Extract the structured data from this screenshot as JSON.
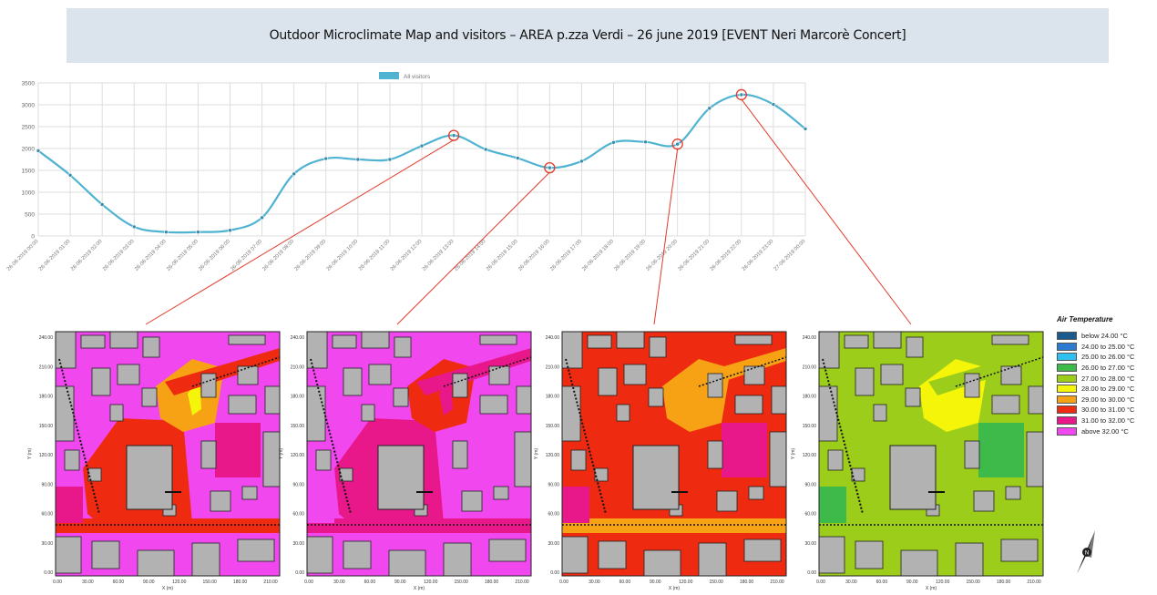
{
  "title": "Outdoor Microclimate Map and visitors – AREA p.zza Verdi – 26 june 2019 [EVENT Neri Marcorè Concert]",
  "chart_data": {
    "type": "line",
    "legend_label": "All visitors",
    "legend_position": "top-center",
    "series_color": "#4fb3d1",
    "grid": true,
    "ylim": [
      0,
      3500
    ],
    "yticks": [
      0,
      500,
      1000,
      1500,
      2000,
      2500,
      3000,
      3500
    ],
    "categories": [
      "26-06-2019 00:00",
      "26-06-2019 01:00",
      "26-06-2019 02:00",
      "26-06-2019 03:00",
      "26-06-2019 04:00",
      "26-06-2019 05:00",
      "26-06-2019 06:00",
      "26-06-2019 07:00",
      "26-06-2019 08:00",
      "26-06-2019 09:00",
      "26-06-2019 10:00",
      "26-06-2019 11:00",
      "26-06-2019 12:00",
      "26-06-2019 13:00",
      "26-06-2019 14:00",
      "26-06-2019 15:00",
      "26-06-2019 16:00",
      "26-06-2019 17:00",
      "26-06-2019 18:00",
      "26-06-2019 19:00",
      "26-06-2019 20:00",
      "26-06-2019 21:00",
      "26-06-2019 22:00",
      "26-06-2019 23:00",
      "27-06-2019 00:00"
    ],
    "series": [
      {
        "values": [
          1950,
          1390,
          720,
          210,
          90,
          90,
          130,
          420,
          1420,
          1770,
          1750,
          1750,
          2060,
          2300,
          1980,
          1780,
          1560,
          1710,
          2140,
          2150,
          2100,
          2920,
          3230,
          3010,
          2450
        ]
      }
    ],
    "highlighted_points": [
      "26-06-2019 13:00",
      "26-06-2019 16:00",
      "26-06-2019 20:00",
      "26-06-2019 22:00"
    ]
  },
  "maps": {
    "ylabel": "Y (m)",
    "xlabel": "X (m)",
    "yticks": [
      "0.00",
      "30.00",
      "60.00",
      "90.00",
      "120.00",
      "150.00",
      "180.00",
      "210.00",
      "240.00"
    ],
    "xticks": [
      "0.00",
      "30.00",
      "60.00",
      "90.00",
      "120.00",
      "150.00",
      "180.00",
      "210.00"
    ]
  },
  "legend": {
    "title": "Air Temperature",
    "items": [
      {
        "label": "below 24.00 °C",
        "color": "#1a5a8c"
      },
      {
        "label": "24.00 to 25.00 °C",
        "color": "#2b7bd1"
      },
      {
        "label": "25.00 to 26.00 °C",
        "color": "#2ec0ee"
      },
      {
        "label": "26.00 to 27.00 °C",
        "color": "#3dba4a"
      },
      {
        "label": "27.00 to 28.00 °C",
        "color": "#9ccd1a"
      },
      {
        "label": "28.00 to 29.00 °C",
        "color": "#f5f50a"
      },
      {
        "label": "29.00 to 30.00 °C",
        "color": "#f7a215"
      },
      {
        "label": "30.00 to 31.00 °C",
        "color": "#ee2b10"
      },
      {
        "label": "31.00 to 32.00 °C",
        "color": "#e8178a"
      },
      {
        "label": "above 32.00 °C",
        "color": "#f048ee"
      }
    ]
  },
  "north_label": "N",
  "colors": {
    "building": "#b2b2b2",
    "highlight": "#e23a2a"
  }
}
